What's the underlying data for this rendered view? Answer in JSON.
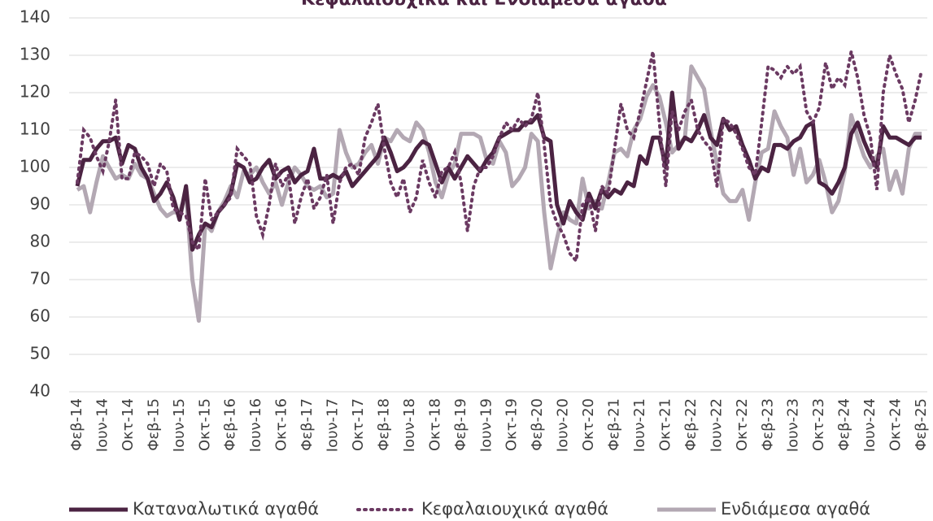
{
  "chart_data": {
    "type": "line",
    "title": "Κεφαλαιουχικά και Ενδιάμεσα αγαθά",
    "categories": [
      "Φεβ-14",
      null,
      null,
      null,
      "Ιουν-14",
      null,
      null,
      null,
      "Οκτ-14",
      null,
      null,
      null,
      "Φεβ-15",
      null,
      null,
      null,
      "Ιουν-15",
      null,
      null,
      null,
      "Οκτ-15",
      null,
      null,
      null,
      "Φεβ-16",
      null,
      null,
      null,
      "Ιουν-16",
      null,
      null,
      null,
      "Οκτ-16",
      null,
      null,
      null,
      "Φεβ-17",
      null,
      null,
      null,
      "Ιουν-17",
      null,
      null,
      null,
      "Οκτ-17",
      null,
      null,
      null,
      "Φεβ-18",
      null,
      null,
      null,
      "Ιουν-18",
      null,
      null,
      null,
      "Οκτ-18",
      null,
      null,
      null,
      "Φεβ-19",
      null,
      null,
      null,
      "Ιουν-19",
      null,
      null,
      null,
      "Οκτ-19",
      null,
      null,
      null,
      "Φεβ-20",
      null,
      null,
      null,
      "Ιουν-20",
      null,
      null,
      null,
      "Οκτ-20",
      null,
      null,
      null,
      "Φεβ-21",
      null,
      null,
      null,
      "Ιουν-21",
      null,
      null,
      null,
      "Οκτ-21",
      null,
      null,
      null,
      "Φεβ-22",
      null,
      null,
      null,
      "Ιουν-22",
      null,
      null,
      null,
      "Οκτ-22",
      null,
      null,
      null,
      "Φεβ-23",
      null,
      null,
      null,
      "Ιουν-23",
      null,
      null,
      null,
      "Οκτ-23",
      null,
      null,
      null,
      "Φεβ-24",
      null,
      null,
      null,
      "Ιουν-24",
      null,
      null,
      null,
      "Οκτ-24",
      null,
      null,
      null,
      "Φεβ-25"
    ],
    "series": [
      {
        "name": "Καταναλωτικά αγαθά",
        "color": "#4b2342",
        "style": "solid",
        "values": [
          95,
          102,
          102,
          105,
          107,
          107,
          108,
          101,
          106,
          105,
          100,
          97,
          91,
          93,
          96,
          92,
          86,
          95,
          78,
          82,
          85,
          84,
          88,
          90,
          93,
          101,
          100,
          96,
          97,
          100,
          102,
          97,
          99,
          100,
          96,
          98,
          99,
          105,
          97,
          97,
          98,
          97,
          99,
          95,
          97,
          99,
          101,
          103,
          108,
          104,
          99,
          100,
          102,
          105,
          107,
          106,
          101,
          96,
          100,
          97,
          100,
          103,
          101,
          99,
          102,
          104,
          108,
          109,
          110,
          110,
          112,
          112,
          114,
          108,
          107,
          90,
          85,
          91,
          88,
          86,
          93,
          89,
          94,
          92,
          94,
          93,
          96,
          95,
          103,
          101,
          108,
          108,
          100,
          120,
          105,
          108,
          107,
          110,
          114,
          108,
          106,
          113,
          110,
          111,
          106,
          102,
          97,
          100,
          99,
          106,
          106,
          105,
          107,
          108,
          111,
          112,
          96,
          95,
          93,
          96,
          100,
          109,
          112,
          107,
          103,
          100,
          111,
          108,
          108,
          107,
          106,
          108,
          108
        ]
      },
      {
        "name": "Κεφαλαιουχικά αγαθά",
        "color": "#6b3a62",
        "style": "dotted",
        "values": [
          96,
          110,
          108,
          103,
          99,
          107,
          118,
          97,
          97,
          104,
          103,
          101,
          95,
          101,
          99,
          89,
          88,
          87,
          80,
          78,
          97,
          86,
          88,
          90,
          92,
          105,
          103,
          101,
          87,
          82,
          90,
          101,
          95,
          98,
          85,
          92,
          97,
          89,
          92,
          98,
          85,
          96,
          100,
          101,
          98,
          108,
          112,
          117,
          105,
          96,
          92,
          97,
          88,
          92,
          102,
          96,
          92,
          99,
          100,
          104,
          96,
          83,
          95,
          100,
          100,
          103,
          108,
          112,
          110,
          113,
          111,
          113,
          120,
          106,
          90,
          85,
          82,
          77,
          75,
          90,
          92,
          83,
          95,
          93,
          105,
          117,
          110,
          108,
          115,
          123,
          131,
          112,
          95,
          115,
          110,
          115,
          118,
          110,
          107,
          105,
          95,
          113,
          112,
          109,
          105,
          100,
          98,
          112,
          127,
          126,
          124,
          127,
          125,
          127,
          115,
          112,
          116,
          128,
          121,
          124,
          122,
          131,
          124,
          114,
          108,
          94,
          120,
          130,
          125,
          121,
          112,
          118,
          126
        ]
      },
      {
        "name": "Ενδιάμεσα αγαθά",
        "color": "#b3a8b3",
        "style": "solid",
        "values": [
          94,
          95,
          88,
          96,
          103,
          100,
          97,
          98,
          97,
          101,
          98,
          97,
          93,
          89,
          87,
          88,
          88,
          93,
          70,
          59,
          85,
          83,
          88,
          91,
          95,
          92,
          99,
          98,
          100,
          96,
          93,
          96,
          90,
          96,
          100,
          98,
          95,
          94,
          95,
          92,
          93,
          110,
          104,
          100,
          101,
          104,
          106,
          101,
          108,
          107,
          110,
          108,
          107,
          112,
          110,
          104,
          96,
          92,
          98,
          101,
          109,
          109,
          109,
          108,
          102,
          101,
          107,
          104,
          95,
          97,
          100,
          109,
          107,
          88,
          73,
          81,
          88,
          86,
          85,
          97,
          89,
          91,
          89,
          96,
          104,
          105,
          103,
          110,
          113,
          119,
          122,
          119,
          112,
          104,
          106,
          108,
          127,
          124,
          121,
          110,
          101,
          93,
          91,
          91,
          94,
          86,
          96,
          104,
          105,
          115,
          111,
          108,
          98,
          105,
          96,
          98,
          102,
          96,
          88,
          91,
          99,
          114,
          108,
          103,
          100,
          103,
          105,
          94,
          99,
          93,
          105,
          109,
          109
        ]
      }
    ],
    "ylim": [
      40,
      140
    ],
    "yticks": [
      40,
      50,
      60,
      70,
      80,
      90,
      100,
      110,
      120,
      130,
      140
    ],
    "grid": true,
    "legend": "bottom"
  }
}
